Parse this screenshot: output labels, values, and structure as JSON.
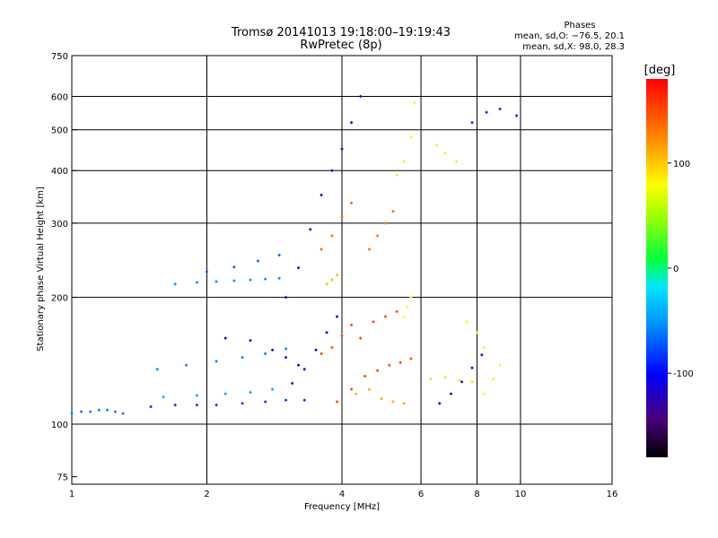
{
  "chart_data": {
    "type": "scatter",
    "title": "Tromsø 20141013 19:18:00–19:19:43",
    "subtitle": "RwPretec (8p)",
    "stats_header": "Phases",
    "stats_o": "mean, sd,O: −76.5, 20.1",
    "stats_x": "mean, sd,X:  98.0, 28.3",
    "xlabel": "Frequency [MHz]",
    "ylabel": "Stationary phase Virtual Height [km]",
    "x_scale": "log",
    "y_scale": "log",
    "xlim": [
      1,
      16
    ],
    "ylim": [
      72,
      750
    ],
    "x_ticks": [
      1,
      2,
      4,
      6,
      8,
      10,
      16
    ],
    "x_tick_labels": [
      "1",
      "2",
      "4",
      "6",
      "8",
      "10",
      "16"
    ],
    "x_grid": [
      2,
      4,
      6,
      8,
      10
    ],
    "y_ticks": [
      75,
      100,
      200,
      300,
      400,
      500,
      600,
      750
    ],
    "y_tick_labels": [
      "75",
      "100",
      "200",
      "300",
      "400",
      "500",
      "600",
      "750"
    ],
    "y_grid": [
      100,
      200,
      300,
      400,
      500,
      600
    ],
    "grid": true,
    "colorbar": {
      "label": "[deg]",
      "range": [
        -180,
        180
      ],
      "ticks": [
        100,
        0,
        -100
      ],
      "tick_labels": [
        "100",
        "0",
        "-100"
      ]
    },
    "series": [
      {
        "values": [
          [
            1.0,
            106
          ],
          [
            1.05,
            107
          ],
          [
            1.1,
            107
          ],
          [
            1.15,
            108
          ],
          [
            1.2,
            108
          ],
          [
            1.25,
            107
          ],
          [
            1.3,
            106
          ]
        ],
        "phase": -60
      },
      {
        "values": [
          [
            1.5,
            110
          ],
          [
            1.7,
            111
          ],
          [
            1.9,
            111
          ],
          [
            2.1,
            111
          ],
          [
            2.4,
            112
          ],
          [
            2.7,
            113
          ],
          [
            3.0,
            114
          ],
          [
            3.3,
            114
          ]
        ],
        "phase": -85
      },
      {
        "values": [
          [
            1.6,
            116
          ],
          [
            1.9,
            117
          ],
          [
            2.2,
            118
          ],
          [
            2.5,
            119
          ],
          [
            2.8,
            121
          ]
        ],
        "phase": -45
      },
      {
        "values": [
          [
            1.55,
            135
          ],
          [
            1.8,
            138
          ],
          [
            2.1,
            141
          ],
          [
            2.4,
            144
          ],
          [
            2.7,
            147
          ],
          [
            3.0,
            151
          ]
        ],
        "phase": -60
      },
      {
        "values": [
          [
            1.7,
            215
          ],
          [
            1.9,
            217
          ],
          [
            2.1,
            218
          ],
          [
            2.3,
            219
          ],
          [
            2.5,
            220
          ],
          [
            2.7,
            221
          ],
          [
            2.9,
            222
          ]
        ],
        "phase": -55
      },
      {
        "values": [
          [
            2.0,
            230
          ],
          [
            2.3,
            236
          ],
          [
            2.6,
            244
          ],
          [
            2.9,
            252
          ]
        ],
        "phase": -70
      },
      {
        "values": [
          [
            2.2,
            160
          ],
          [
            2.5,
            158
          ],
          [
            2.8,
            150
          ],
          [
            3.0,
            144
          ],
          [
            3.2,
            138
          ]
        ],
        "phase": -110
      },
      {
        "values": [
          [
            3.0,
            200
          ],
          [
            3.2,
            235
          ],
          [
            3.4,
            290
          ],
          [
            3.6,
            350
          ],
          [
            3.8,
            400
          ],
          [
            4.0,
            450
          ],
          [
            4.2,
            520
          ],
          [
            4.4,
            600
          ]
        ],
        "phase": -110
      },
      {
        "values": [
          [
            3.1,
            125
          ],
          [
            3.3,
            135
          ],
          [
            3.5,
            150
          ],
          [
            3.7,
            165
          ],
          [
            3.9,
            180
          ]
        ],
        "phase": -100
      },
      {
        "values": [
          [
            3.6,
            147
          ],
          [
            3.8,
            152
          ],
          [
            4.0,
            162
          ],
          [
            4.2,
            172
          ]
        ],
        "phase": 150
      },
      {
        "values": [
          [
            3.6,
            260
          ],
          [
            3.8,
            280
          ],
          [
            4.0,
            310
          ],
          [
            4.2,
            335
          ]
        ],
        "phase": 140
      },
      {
        "values": [
          [
            3.7,
            215
          ],
          [
            3.8,
            220
          ],
          [
            3.9,
            226
          ]
        ],
        "phase": 105
      },
      {
        "values": [
          [
            3.9,
            113
          ],
          [
            4.2,
            121
          ],
          [
            4.5,
            130
          ],
          [
            4.8,
            134
          ],
          [
            5.1,
            138
          ],
          [
            5.4,
            140
          ],
          [
            5.7,
            143
          ]
        ],
        "phase": 150
      },
      {
        "values": [
          [
            4.3,
            118
          ],
          [
            4.6,
            121
          ],
          [
            4.9,
            115
          ],
          [
            5.2,
            113
          ],
          [
            5.5,
            112
          ]
        ],
        "phase": 110
      },
      {
        "values": [
          [
            4.4,
            160
          ],
          [
            4.7,
            175
          ],
          [
            5.0,
            180
          ],
          [
            5.3,
            185
          ]
        ],
        "phase": 150
      },
      {
        "values": [
          [
            4.6,
            260
          ],
          [
            4.8,
            280
          ],
          [
            5.0,
            300
          ],
          [
            5.2,
            320
          ]
        ],
        "phase": 135
      },
      {
        "values": [
          [
            5.5,
            180
          ],
          [
            5.6,
            190
          ],
          [
            5.7,
            200
          ]
        ],
        "phase": 80
      },
      {
        "values": [
          [
            5.3,
            390
          ],
          [
            5.5,
            420
          ],
          [
            5.7,
            480
          ],
          [
            5.8,
            580
          ]
        ],
        "phase": 70
      },
      {
        "values": [
          [
            6.6,
            112
          ],
          [
            7.0,
            118
          ],
          [
            7.4,
            126
          ],
          [
            7.8,
            136
          ],
          [
            8.2,
            146
          ]
        ],
        "phase": -120
      },
      {
        "values": [
          [
            6.3,
            128
          ],
          [
            6.8,
            129
          ],
          [
            7.3,
            127
          ],
          [
            7.8,
            126
          ]
        ],
        "phase": 60
      },
      {
        "values": [
          [
            7.6,
            175
          ],
          [
            8.0,
            165
          ],
          [
            8.3,
            152
          ]
        ],
        "phase": 80
      },
      {
        "values": [
          [
            8.3,
            118
          ],
          [
            8.7,
            128
          ],
          [
            9.0,
            138
          ]
        ],
        "phase": 80
      },
      {
        "values": [
          [
            6.5,
            460
          ],
          [
            6.8,
            440
          ],
          [
            7.2,
            420
          ]
        ],
        "phase": 70
      },
      {
        "values": [
          [
            7.8,
            520
          ],
          [
            8.4,
            550
          ],
          [
            9.0,
            560
          ],
          [
            9.8,
            540
          ]
        ],
        "phase": -90
      }
    ]
  }
}
